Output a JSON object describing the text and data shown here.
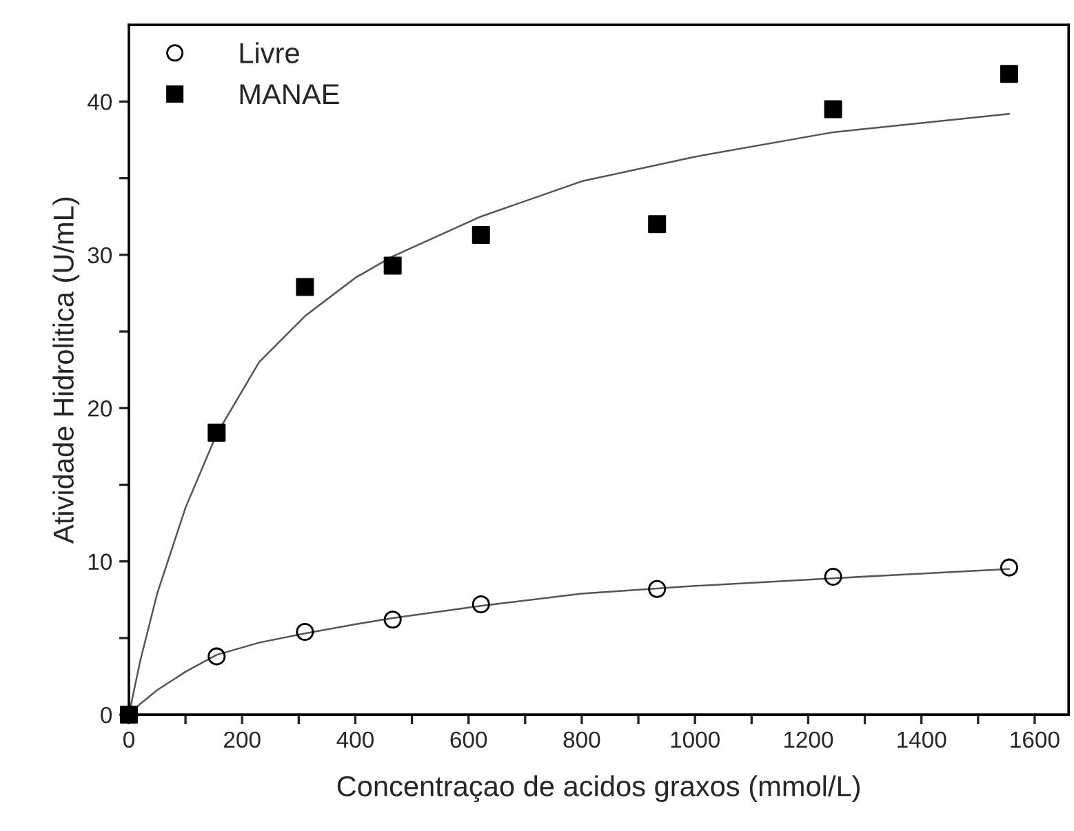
{
  "chart_data": {
    "type": "scatter",
    "xlabel": "Concentraçao de acidos graxos (mmol/L)",
    "ylabel": "Atividade Hidrolitica (U/mL)",
    "xlim": [
      0,
      1660
    ],
    "ylim": [
      0,
      45
    ],
    "xticks": [
      0,
      {
        "value": 100,
        "label": null
      },
      200,
      {
        "value": 300,
        "label": null
      },
      400,
      {
        "value": 500,
        "label": null
      },
      600,
      {
        "value": 700,
        "label": null
      },
      800,
      {
        "value": 900,
        "label": null
      },
      1000,
      {
        "value": 1100,
        "label": null
      },
      1200,
      {
        "value": 1300,
        "label": null
      },
      1400,
      {
        "value": 1500,
        "label": null
      },
      1600
    ],
    "yticks": [
      0,
      {
        "value": 5,
        "label": null
      },
      10,
      {
        "value": 15,
        "label": null
      },
      20,
      {
        "value": 25,
        "label": null
      },
      30,
      {
        "value": 35,
        "label": null
      },
      40
    ],
    "grid": false,
    "legend": "top left",
    "series": [
      {
        "name": "Livre",
        "marker": "circle",
        "color": "#000000",
        "x": [
          155,
          311,
          466,
          622,
          933,
          1244,
          1555
        ],
        "values": [
          3.8,
          5.4,
          6.2,
          7.2,
          8.2,
          9.0,
          9.6
        ]
      },
      {
        "name": "MANAE",
        "marker": "square",
        "color": "#000000",
        "x": [
          0,
          155,
          311,
          466,
          622,
          933,
          1244,
          1555
        ],
        "values": [
          0,
          18.4,
          27.9,
          29.3,
          31.3,
          32.0,
          39.5,
          41.8
        ]
      },
      {
        "type": "line",
        "marker": "none",
        "line_style": "solid",
        "color": "#555555",
        "x": [
          0,
          20,
          50,
          100,
          155,
          230,
          311,
          400,
          466,
          622,
          800,
          1000,
          1244,
          1555
        ],
        "values": [
          0,
          0.7,
          1.6,
          2.8,
          3.9,
          4.7,
          5.3,
          5.9,
          6.3,
          7.1,
          7.9,
          8.4,
          8.9,
          9.5
        ]
      },
      {
        "type": "line",
        "marker": "none",
        "line_style": "solid",
        "color": "#555555",
        "x": [
          0,
          20,
          50,
          100,
          155,
          230,
          311,
          400,
          466,
          622,
          800,
          1000,
          1244,
          1555
        ],
        "values": [
          0,
          3.5,
          7.9,
          13.5,
          18.3,
          23.0,
          26.0,
          28.5,
          29.9,
          32.5,
          34.8,
          36.4,
          38.0,
          39.2
        ]
      }
    ]
  }
}
